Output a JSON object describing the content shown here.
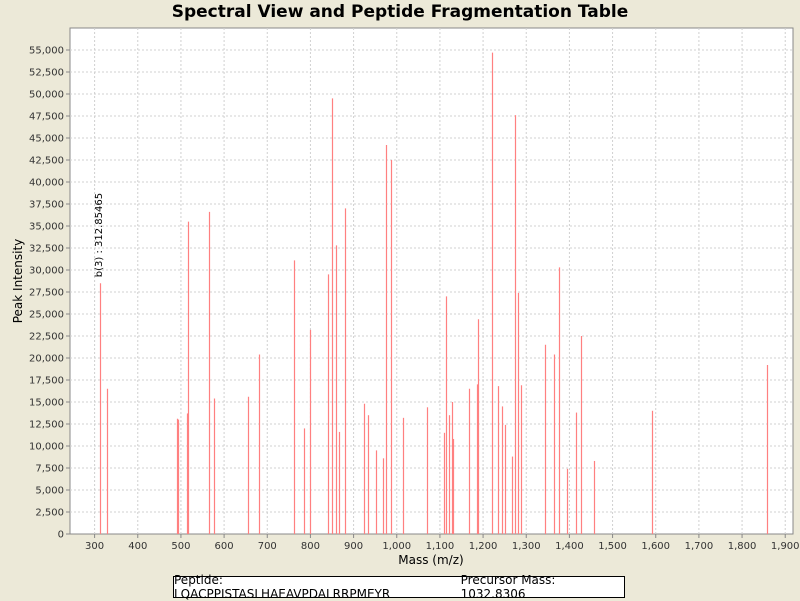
{
  "chart_data": {
    "type": "bar",
    "title": "Spectral View and Peptide Fragmentation Table",
    "xlabel": "Mass (m/z)",
    "ylabel": "Peak Intensity",
    "xlim": [
      243,
      1918
    ],
    "ylim": [
      0,
      57500
    ],
    "grid": true,
    "x_ticks": [
      300,
      400,
      500,
      600,
      700,
      800,
      900,
      1000,
      1100,
      1200,
      1300,
      1400,
      1500,
      1600,
      1700,
      1800,
      1900
    ],
    "x_tick_labels": [
      "300",
      "400",
      "500",
      "600",
      "700",
      "800",
      "900",
      "1,000",
      "1,100",
      "1,200",
      "1,300",
      "1,400",
      "1,500",
      "1,600",
      "1,700",
      "1,800",
      "1,900"
    ],
    "y_ticks": [
      0,
      2500,
      5000,
      7500,
      10000,
      12500,
      15000,
      17500,
      20000,
      22500,
      25000,
      27500,
      30000,
      32500,
      35000,
      37500,
      40000,
      42500,
      45000,
      47500,
      50000,
      52500,
      55000
    ],
    "y_tick_labels": [
      "0",
      "2,500",
      "5,000",
      "7,500",
      "10,000",
      "12,500",
      "15,000",
      "17,500",
      "20,000",
      "22,500",
      "25,000",
      "27,500",
      "30,000",
      "32,500",
      "35,000",
      "37,500",
      "40,000",
      "42,500",
      "45,000",
      "47,500",
      "50,000",
      "52,500",
      "55,000"
    ],
    "bar_color": "#ff8080",
    "peaks": [
      {
        "x": 313,
        "y": 28500
      },
      {
        "x": 328,
        "y": 16500
      },
      {
        "x": 491,
        "y": 13100
      },
      {
        "x": 494,
        "y": 13000
      },
      {
        "x": 513,
        "y": 13700
      },
      {
        "x": 516,
        "y": 35500
      },
      {
        "x": 565,
        "y": 36600
      },
      {
        "x": 577,
        "y": 15400
      },
      {
        "x": 656,
        "y": 15600
      },
      {
        "x": 681,
        "y": 20400
      },
      {
        "x": 762,
        "y": 31100
      },
      {
        "x": 785,
        "y": 12000
      },
      {
        "x": 799,
        "y": 23200
      },
      {
        "x": 841,
        "y": 29500
      },
      {
        "x": 849,
        "y": 49500
      },
      {
        "x": 860,
        "y": 32800
      },
      {
        "x": 867,
        "y": 11600
      },
      {
        "x": 881,
        "y": 37000
      },
      {
        "x": 925,
        "y": 14800
      },
      {
        "x": 934,
        "y": 13500
      },
      {
        "x": 953,
        "y": 9500
      },
      {
        "x": 967,
        "y": 8600
      },
      {
        "x": 974,
        "y": 44200
      },
      {
        "x": 986,
        "y": 42500
      },
      {
        "x": 1014,
        "y": 13200
      },
      {
        "x": 1071,
        "y": 14400
      },
      {
        "x": 1110,
        "y": 11500
      },
      {
        "x": 1113,
        "y": 27000
      },
      {
        "x": 1122,
        "y": 13500
      },
      {
        "x": 1128,
        "y": 15000
      },
      {
        "x": 1130,
        "y": 10800
      },
      {
        "x": 1167,
        "y": 16500
      },
      {
        "x": 1185,
        "y": 17000
      },
      {
        "x": 1188,
        "y": 24400
      },
      {
        "x": 1220,
        "y": 54700
      },
      {
        "x": 1235,
        "y": 16800
      },
      {
        "x": 1243,
        "y": 14500
      },
      {
        "x": 1251,
        "y": 12400
      },
      {
        "x": 1267,
        "y": 8800
      },
      {
        "x": 1273,
        "y": 47600
      },
      {
        "x": 1282,
        "y": 27400
      },
      {
        "x": 1287,
        "y": 16900
      },
      {
        "x": 1343,
        "y": 21500
      },
      {
        "x": 1365,
        "y": 20400
      },
      {
        "x": 1376,
        "y": 30300
      },
      {
        "x": 1395,
        "y": 7400
      },
      {
        "x": 1416,
        "y": 13800
      },
      {
        "x": 1428,
        "y": 22500
      },
      {
        "x": 1456,
        "y": 8300
      },
      {
        "x": 1591,
        "y": 14000
      },
      {
        "x": 1857,
        "y": 19200
      }
    ],
    "annotations": [
      {
        "x": 313,
        "y": 28500,
        "text": "b(3) : 312.85465"
      }
    ]
  },
  "footer": {
    "peptide": "Peptide: LQACPPISTASLHAEAVPDALRRPMEYR",
    "precursor": "Precursor Mass: 1032.8306"
  }
}
